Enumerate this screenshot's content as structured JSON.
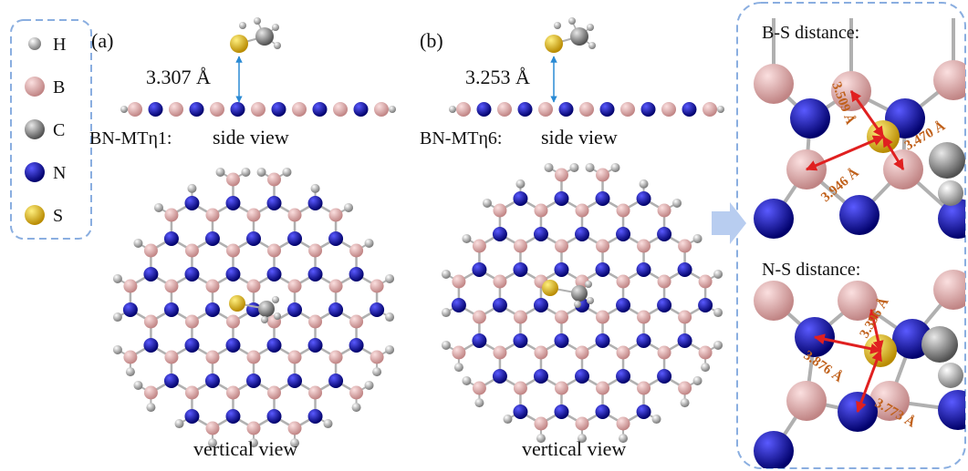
{
  "legend": {
    "items": [
      "H",
      "B",
      "C",
      "N",
      "S"
    ]
  },
  "panel_a": {
    "label": "(a)",
    "distance": "3.307 Å",
    "name": "BN-MTη1:",
    "side_view": "side view",
    "vertical_view": "vertical view"
  },
  "panel_b": {
    "label": "(b)",
    "distance": "3.253 Å",
    "name": "BN-MTη6:",
    "side_view": "side view",
    "vertical_view": "vertical view"
  },
  "zoom": {
    "bs_title": "B-S distance:",
    "bs_distances": [
      "3.509 Å",
      "3.470 Å",
      "3.946 Å"
    ],
    "ns_title": "N-S distance:",
    "ns_distances": [
      "3.396 Å",
      "3.876 Å",
      "3.773 Å"
    ]
  }
}
